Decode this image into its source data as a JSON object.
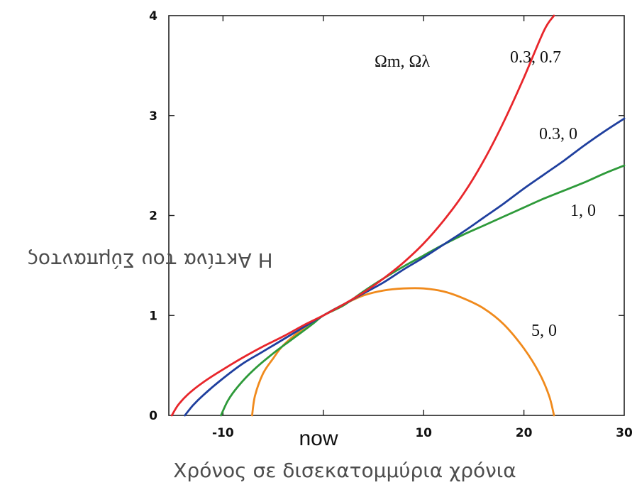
{
  "chart_data": {
    "type": "line",
    "title": "",
    "xlabel": "Χρόνος σε δισεκατομμύρια χρόνια",
    "ylabel": "Η Ακτίνα του Σύμπαντος",
    "xlim": [
      -15.4,
      30
    ],
    "ylim": [
      0,
      4
    ],
    "x_ticks": [
      "-10",
      "10",
      "20",
      "30"
    ],
    "y_ticks": [
      "0",
      "1",
      "2",
      "3",
      "4"
    ],
    "now_label": "now",
    "legend_title": "Ωm, Ωλ",
    "grid": false,
    "colors": {
      "0.3, 0.7": "#e8262b",
      "0.3, 0": "#1f3f9e",
      "1, 0": "#2e9a3a",
      "5, 0": "#f08a1c"
    },
    "series": [
      {
        "name": "0.3, 0.7",
        "x": [
          -15.1,
          -14.5,
          -13.5,
          -12.0,
          -10.0,
          -8.0,
          -6.0,
          -4.0,
          -2.0,
          0.0,
          2.0,
          4.0,
          6.0,
          8.0,
          10.0,
          12.0,
          14.0,
          16.0,
          18.0,
          20.0,
          22.0,
          23.0
        ],
        "y": [
          0.0,
          0.1,
          0.21,
          0.33,
          0.46,
          0.58,
          0.69,
          0.79,
          0.9,
          1.0,
          1.11,
          1.23,
          1.37,
          1.53,
          1.72,
          1.95,
          2.22,
          2.55,
          2.94,
          3.38,
          3.85,
          4.0
        ]
      },
      {
        "name": "0.3, 0",
        "x": [
          -13.8,
          -13.0,
          -12.0,
          -10.0,
          -8.0,
          -6.0,
          -4.0,
          -2.0,
          0.0,
          2.0,
          4.0,
          6.0,
          8.0,
          10.0,
          12.0,
          14.0,
          16.0,
          18.0,
          20.0,
          22.0,
          24.0,
          26.0,
          28.0,
          30.0
        ],
        "y": [
          0.0,
          0.1,
          0.2,
          0.37,
          0.52,
          0.64,
          0.76,
          0.88,
          1.0,
          1.11,
          1.22,
          1.33,
          1.46,
          1.58,
          1.71,
          1.84,
          1.98,
          2.12,
          2.27,
          2.41,
          2.55,
          2.7,
          2.84,
          2.97
        ]
      },
      {
        "name": "1, 0",
        "x": [
          -10.2,
          -9.5,
          -8.5,
          -7.0,
          -5.0,
          -3.0,
          -1.0,
          0.0,
          2.0,
          4.0,
          6.0,
          8.0,
          10.0,
          12.0,
          14.0,
          16.0,
          18.0,
          20.0,
          22.0,
          24.0,
          26.0,
          28.0,
          30.0
        ],
        "y": [
          0.0,
          0.15,
          0.29,
          0.45,
          0.62,
          0.77,
          0.92,
          1.0,
          1.1,
          1.24,
          1.37,
          1.49,
          1.6,
          1.71,
          1.81,
          1.9,
          1.99,
          2.08,
          2.17,
          2.25,
          2.33,
          2.42,
          2.5
        ]
      },
      {
        "name": "5, 0",
        "x": [
          -7.1,
          -6.8,
          -6.0,
          -5.0,
          -4.0,
          -2.0,
          0.0,
          2.0,
          4.0,
          6.0,
          8.0,
          10.0,
          12.0,
          14.0,
          16.0,
          18.0,
          20.0,
          21.5,
          22.5,
          23.0
        ],
        "y": [
          0.0,
          0.2,
          0.42,
          0.57,
          0.7,
          0.87,
          1.0,
          1.11,
          1.2,
          1.25,
          1.27,
          1.27,
          1.24,
          1.17,
          1.07,
          0.91,
          0.67,
          0.43,
          0.2,
          0.0
        ]
      }
    ]
  }
}
